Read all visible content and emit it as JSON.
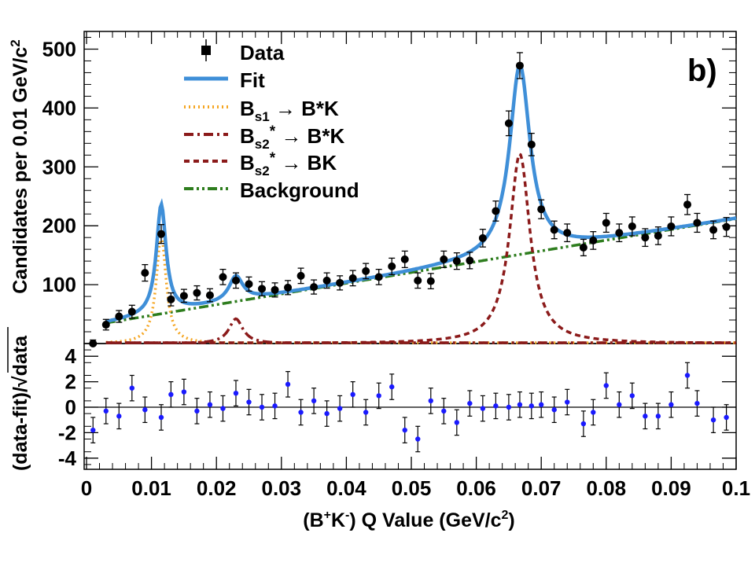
{
  "chart_data": {
    "type": "scatter",
    "panel_label": "b)",
    "xlabel": {
      "pre": "(B",
      "sup1": "+",
      "mid": "K",
      "sup2": "-",
      "post": ") Q Value (GeV/c",
      "sup3": "2",
      "end": ")"
    },
    "ylabel_top": {
      "pre": "Candidates per 0.01 GeV/c",
      "sup": "2"
    },
    "ylabel_bottom": "(data-fit)/√data",
    "xlim": [
      0,
      0.1
    ],
    "ylim_top": [
      0,
      530
    ],
    "ylim_bottom": [
      -5,
      5
    ],
    "x_ticks": [
      0,
      0.01,
      0.02,
      0.03,
      0.04,
      0.05,
      0.06,
      0.07,
      0.08,
      0.09,
      0.1
    ],
    "x_tick_labels": [
      "0",
      "0.01",
      "0.02",
      "0.03",
      "0.04",
      "0.05",
      "0.06",
      "0.07",
      "0.08",
      "0.09",
      "0.1"
    ],
    "y_ticks_top": [
      100,
      200,
      300,
      400,
      500
    ],
    "y_tick_labels_top": [
      "100",
      "200",
      "300",
      "400",
      "500"
    ],
    "y_ticks_bottom": [
      -4,
      -2,
      0,
      2,
      4
    ],
    "y_tick_labels_bottom": [
      "-4",
      "-2",
      "0",
      "2",
      "4"
    ],
    "legend": [
      {
        "key": "data",
        "kind": "marker",
        "color": "#000000",
        "text": {
          "main": "Data"
        }
      },
      {
        "key": "fit",
        "kind": "solid",
        "color": "#3f8fd8",
        "text": {
          "main": "Fit"
        }
      },
      {
        "key": "bs1",
        "kind": "dotted",
        "color": "#f5a623",
        "text": {
          "main": "B",
          "sub": "s1",
          "rest": " → B*K"
        }
      },
      {
        "key": "bs2_bstar",
        "kind": "dashdot",
        "color": "#8b1a1a",
        "text": {
          "main": "B",
          "sub": "s2",
          "sup": "*",
          "rest": " → B*K"
        }
      },
      {
        "key": "bs2_b",
        "kind": "dashed",
        "color": "#8b1a1a",
        "text": {
          "main": "B",
          "sub": "s2",
          "sup": "*",
          "rest": " → BK"
        }
      },
      {
        "key": "background",
        "kind": "dashdotdot",
        "color": "#2e7d1e",
        "text": {
          "main": "Background"
        }
      }
    ],
    "series": [
      {
        "name": "Data",
        "color": "#000000",
        "points": [
          [
            0.001,
            0
          ],
          [
            0.003,
            32
          ],
          [
            0.005,
            46
          ],
          [
            0.007,
            54
          ],
          [
            0.009,
            120
          ],
          [
            0.0115,
            186
          ],
          [
            0.013,
            75
          ],
          [
            0.015,
            81
          ],
          [
            0.017,
            86
          ],
          [
            0.019,
            82
          ],
          [
            0.021,
            113
          ],
          [
            0.023,
            107
          ],
          [
            0.025,
            101
          ],
          [
            0.027,
            93
          ],
          [
            0.029,
            91
          ],
          [
            0.031,
            95
          ],
          [
            0.033,
            115
          ],
          [
            0.035,
            96
          ],
          [
            0.037,
            107
          ],
          [
            0.039,
            103
          ],
          [
            0.041,
            111
          ],
          [
            0.043,
            123
          ],
          [
            0.045,
            113
          ],
          [
            0.047,
            131
          ],
          [
            0.049,
            143
          ],
          [
            0.051,
            107
          ],
          [
            0.053,
            106
          ],
          [
            0.055,
            143
          ],
          [
            0.057,
            140
          ],
          [
            0.059,
            141
          ],
          [
            0.061,
            179
          ],
          [
            0.063,
            225
          ],
          [
            0.065,
            374
          ],
          [
            0.0667,
            472
          ],
          [
            0.0685,
            338
          ],
          [
            0.07,
            228
          ],
          [
            0.072,
            193
          ],
          [
            0.074,
            188
          ],
          [
            0.0765,
            163
          ],
          [
            0.078,
            175
          ],
          [
            0.08,
            205
          ],
          [
            0.082,
            188
          ],
          [
            0.084,
            199
          ],
          [
            0.086,
            180
          ],
          [
            0.088,
            183
          ],
          [
            0.09,
            199
          ],
          [
            0.0925,
            236
          ],
          [
            0.094,
            205
          ],
          [
            0.0965,
            193
          ],
          [
            0.0985,
            198
          ]
        ],
        "errors": [
          6,
          9,
          10,
          11,
          14,
          16,
          11,
          11,
          12,
          11,
          13,
          13,
          12,
          12,
          12,
          12,
          13,
          12,
          13,
          12,
          13,
          13,
          13,
          14,
          14,
          13,
          13,
          14,
          14,
          14,
          15,
          17,
          21,
          22,
          19,
          16,
          15,
          15,
          14,
          15,
          16,
          15,
          16,
          15,
          15,
          16,
          17,
          16,
          15,
          16
        ]
      },
      {
        "name": "Residuals",
        "color": "#1a1aff",
        "points": [
          [
            0.001,
            -1.8
          ],
          [
            0.003,
            -0.3
          ],
          [
            0.005,
            -0.7
          ],
          [
            0.007,
            1.5
          ],
          [
            0.009,
            -0.2
          ],
          [
            0.0115,
            -0.8
          ],
          [
            0.013,
            1.0
          ],
          [
            0.015,
            1.2
          ],
          [
            0.017,
            -0.3
          ],
          [
            0.019,
            0.2
          ],
          [
            0.021,
            -0.1
          ],
          [
            0.023,
            1.1
          ],
          [
            0.025,
            0.4
          ],
          [
            0.027,
            0.0
          ],
          [
            0.029,
            0.1
          ],
          [
            0.031,
            1.8
          ],
          [
            0.033,
            -0.4
          ],
          [
            0.035,
            0.5
          ],
          [
            0.037,
            -0.5
          ],
          [
            0.039,
            -0.1
          ],
          [
            0.041,
            1.0
          ],
          [
            0.043,
            -0.4
          ],
          [
            0.045,
            0.9
          ],
          [
            0.047,
            1.6
          ],
          [
            0.049,
            -1.8
          ],
          [
            0.051,
            -2.5
          ],
          [
            0.053,
            0.5
          ],
          [
            0.055,
            -0.3
          ],
          [
            0.057,
            -1.2
          ],
          [
            0.059,
            0.3
          ],
          [
            0.061,
            -0.1
          ],
          [
            0.063,
            0.1
          ],
          [
            0.065,
            0.0
          ],
          [
            0.0667,
            0.2
          ],
          [
            0.0685,
            0.1
          ],
          [
            0.07,
            0.2
          ],
          [
            0.072,
            -0.2
          ],
          [
            0.074,
            0.4
          ],
          [
            0.0765,
            -1.3
          ],
          [
            0.078,
            -0.4
          ],
          [
            0.08,
            1.7
          ],
          [
            0.082,
            0.2
          ],
          [
            0.084,
            0.9
          ],
          [
            0.086,
            -0.7
          ],
          [
            0.088,
            -0.7
          ],
          [
            0.09,
            0.2
          ],
          [
            0.0925,
            2.5
          ],
          [
            0.094,
            0.3
          ],
          [
            0.0965,
            -1.0
          ],
          [
            0.0985,
            -0.8
          ]
        ],
        "error": 1
      }
    ],
    "curves": {
      "background": {
        "type": "linear",
        "x0": 0.003,
        "y0": 35,
        "x1": 0.1,
        "y1": 212
      },
      "bs1": {
        "type": "breit_wigner",
        "mean": 0.0115,
        "width": 0.0018,
        "amplitude": 185
      },
      "bs2_bstar": {
        "type": "breit_wigner",
        "mean": 0.023,
        "width": 0.0026,
        "amplitude": 42
      },
      "bs2_b": {
        "type": "breit_wigner",
        "mean": 0.0667,
        "width": 0.0038,
        "amplitude": 322
      },
      "fit_range": [
        0.003,
        0.1
      ]
    }
  }
}
